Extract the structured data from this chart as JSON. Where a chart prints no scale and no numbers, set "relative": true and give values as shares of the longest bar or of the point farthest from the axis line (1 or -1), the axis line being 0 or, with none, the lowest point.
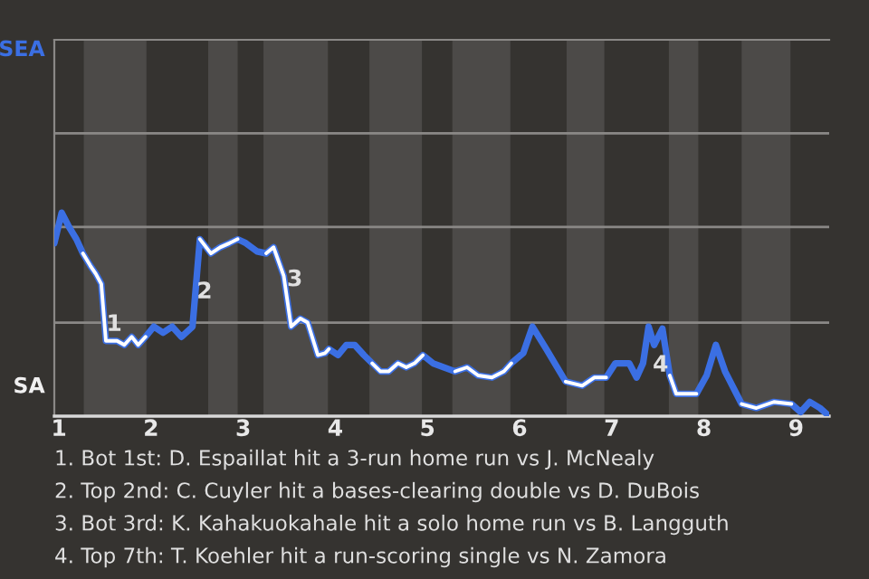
{
  "chart_data": {
    "type": "line",
    "relative": true,
    "x": [
      0.95,
      1.03,
      1.11,
      1.19,
      1.26,
      1.34,
      1.4,
      1.46,
      1.51,
      1.57,
      1.63,
      1.71,
      1.79,
      1.86,
      1.94,
      2.03,
      2.13,
      2.23,
      2.33,
      2.45,
      2.53,
      2.65,
      2.75,
      2.85,
      2.94,
      3.03,
      3.15,
      3.25,
      3.33,
      3.44,
      3.52,
      3.62,
      3.7,
      3.81,
      3.89,
      3.93,
      4.03,
      4.12,
      4.21,
      4.31,
      4.4,
      4.49,
      4.58,
      4.68,
      4.77,
      4.86,
      4.95,
      5.06,
      5.18,
      5.3,
      5.43,
      5.55,
      5.7,
      5.83,
      5.91,
      6.04,
      6.14,
      6.29,
      6.5,
      6.68,
      6.81,
      6.94,
      7.04,
      7.19,
      7.27,
      7.34,
      7.4,
      7.46,
      7.55,
      7.63,
      7.7,
      7.8,
      7.92,
      8.03,
      8.13,
      8.23,
      8.41,
      8.57,
      8.76,
      8.95,
      9.05,
      9.15,
      9.26,
      9.36
    ],
    "xlim": [
      0.95,
      9.36
    ],
    "xticks": [
      1,
      2,
      3,
      4,
      5,
      6,
      7,
      8,
      9
    ],
    "series": [
      {
        "color": "#3b6fe3",
        "values": [
          0.85,
          1,
          0.93,
          0.87,
          0.8,
          0.74,
          0.7,
          0.65,
          0.37,
          0.37,
          0.37,
          0.35,
          0.39,
          0.35,
          0.39,
          0.44,
          0.41,
          0.44,
          0.39,
          0.44,
          0.87,
          0.8,
          0.83,
          0.85,
          0.87,
          0.85,
          0.81,
          0.8,
          0.83,
          0.69,
          0.44,
          0.48,
          0.46,
          0.3,
          0.31,
          0.33,
          0.3,
          0.35,
          0.35,
          0.3,
          0.26,
          0.22,
          0.22,
          0.26,
          0.24,
          0.26,
          0.3,
          0.26,
          0.24,
          0.22,
          0.24,
          0.2,
          0.19,
          0.22,
          0.26,
          0.31,
          0.44,
          0.33,
          0.17,
          0.15,
          0.19,
          0.19,
          0.26,
          0.26,
          0.19,
          0.26,
          0.44,
          0.35,
          0.43,
          0.2,
          0.11,
          0.11,
          0.11,
          0.2,
          0.35,
          0.22,
          0.06,
          0.04,
          0.07,
          0.06,
          0.02,
          0.07,
          0.04,
          0
        ]
      },
      {
        "color": "#ffffff",
        "values": [
          null,
          null,
          null,
          null,
          0.8,
          0.74,
          0.7,
          0.65,
          0.37,
          0.37,
          0.37,
          0.35,
          0.39,
          0.35,
          0.39,
          null,
          null,
          null,
          null,
          null,
          0.87,
          0.8,
          0.83,
          0.85,
          0.87,
          null,
          null,
          0.8,
          0.83,
          0.69,
          0.44,
          0.48,
          0.46,
          0.3,
          0.31,
          0.33,
          null,
          null,
          null,
          null,
          0.26,
          0.22,
          0.22,
          0.26,
          0.24,
          0.26,
          0.3,
          null,
          null,
          0.22,
          0.24,
          0.2,
          0.19,
          0.22,
          0.26,
          null,
          null,
          null,
          0.17,
          0.15,
          0.19,
          0.19,
          null,
          null,
          null,
          null,
          null,
          null,
          null,
          0.2,
          0.11,
          0.11,
          0.11,
          null,
          null,
          null,
          0.06,
          0.04,
          0.07,
          0.06,
          null,
          null,
          null,
          null
        ]
      }
    ],
    "ref_lines": [
      {
        "axis": "y",
        "value": 0.46,
        "color": "#8a8886"
      },
      {
        "axis": "y",
        "value": 0.93,
        "color": "#8a8886"
      },
      {
        "axis": "y",
        "value": 1.39,
        "color": "#8a8886"
      }
    ],
    "bands": [
      {
        "axis": "x",
        "from": 1.27,
        "to": 1.95,
        "color": "#4c4a48"
      },
      {
        "axis": "x",
        "from": 2.62,
        "to": 2.94,
        "color": "#4c4a48"
      },
      {
        "axis": "x",
        "from": 3.22,
        "to": 3.92,
        "color": "#4c4a48"
      },
      {
        "axis": "x",
        "from": 4.37,
        "to": 4.94,
        "color": "#4c4a48"
      },
      {
        "axis": "x",
        "from": 5.27,
        "to": 5.9,
        "color": "#4c4a48"
      },
      {
        "axis": "x",
        "from": 6.51,
        "to": 6.92,
        "color": "#4c4a48"
      },
      {
        "axis": "x",
        "from": 7.62,
        "to": 7.94,
        "color": "#4c4a48"
      },
      {
        "axis": "x",
        "from": 8.41,
        "to": 8.94,
        "color": "#4c4a48"
      }
    ],
    "annotations": [
      "SEA",
      "SA",
      {
        "text": "1",
        "x": 1.6,
        "y": 0.45
      },
      {
        "text": "2",
        "x": 2.58,
        "y": 0.61
      },
      {
        "text": "3",
        "x": 3.56,
        "y": 0.67
      },
      {
        "text": "4",
        "x": 7.53,
        "y": 0.25
      },
      "1. Bot 1st: D. Espaillat hit a 3-run home run vs J. McNealy",
      "2. Top 2nd: C. Cuyler hit a bases-clearing double vs D. DuBois",
      "3. Bot 3rd: K. Kahakuokahale hit a solo home run vs B. Langguth",
      "4. Top 7th: T. Koehler hit a run-scoring single vs N. Zamora"
    ]
  }
}
